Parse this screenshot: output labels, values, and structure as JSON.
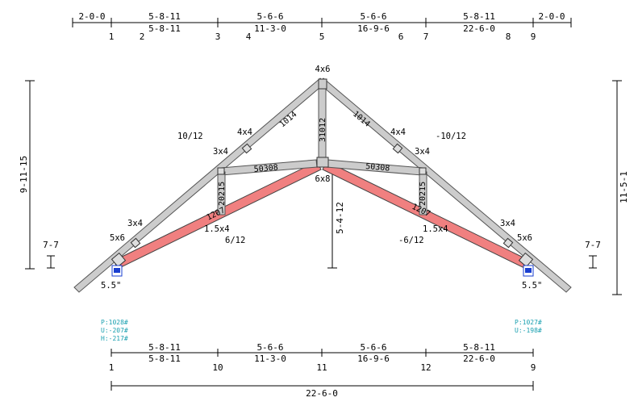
{
  "top_dims": {
    "row1": [
      "2-0-0",
      "5-8-11",
      "5-6-6",
      "5-6-6",
      "5-8-11",
      "2-0-0"
    ],
    "row2": [
      "5-8-11",
      "11-3-0",
      "16-9-6",
      "22-6-0"
    ],
    "joints": [
      "1",
      "2",
      "3",
      "4",
      "5",
      "6",
      "7",
      "8",
      "9"
    ]
  },
  "bottom_dims": {
    "row1": [
      "5-8-11",
      "5-6-6",
      "5-6-6",
      "5-8-11"
    ],
    "row2": [
      "5-8-11",
      "11-3-0",
      "16-9-6",
      "22-6-0"
    ],
    "joints": [
      "1",
      "10",
      "11",
      "12",
      "9"
    ],
    "overall": "22-6-0"
  },
  "heights": {
    "left_overall": "9-11-15",
    "right_overall": "11-5-1",
    "left_heel": "7-7",
    "right_heel": "7-7",
    "center": "5-4-12"
  },
  "pitch": {
    "top_left": "10/12",
    "top_right": "-10/12",
    "bottom_left": "6/12",
    "bottom_right": "-6/12"
  },
  "plates": {
    "peak": "4x6",
    "center": "6x8",
    "left_web_top": "4x4",
    "right_web_top": "4x4",
    "left_3x4_upper": "3x4",
    "right_3x4_upper": "3x4",
    "left_3x4_lower": "3x4",
    "right_3x4_lower": "3x4",
    "left_heel": "5x6",
    "right_heel": "5x6",
    "left_bc": "1.5x4",
    "right_bc": "1.5x4"
  },
  "bearings": {
    "left": "5.5\"",
    "right": "5.5\""
  },
  "members": {
    "top_left": "1014",
    "top_right": "1014",
    "vert_center": "31012",
    "strut_left": "50308",
    "strut_right": "50308",
    "web_left": "20215",
    "web_right": "20215",
    "bc_left": "1207",
    "bc_right": "1207"
  },
  "reactions": {
    "left": [
      "P:1028#",
      "U:-207#",
      "H:-217#"
    ],
    "right": [
      "P:1027#",
      "U:-198#"
    ]
  },
  "colors": {
    "chord": "#f08080",
    "member": "#cccccc",
    "reaction_text": "#1aa0b0",
    "bearing_blue": "#1a3fd0"
  }
}
